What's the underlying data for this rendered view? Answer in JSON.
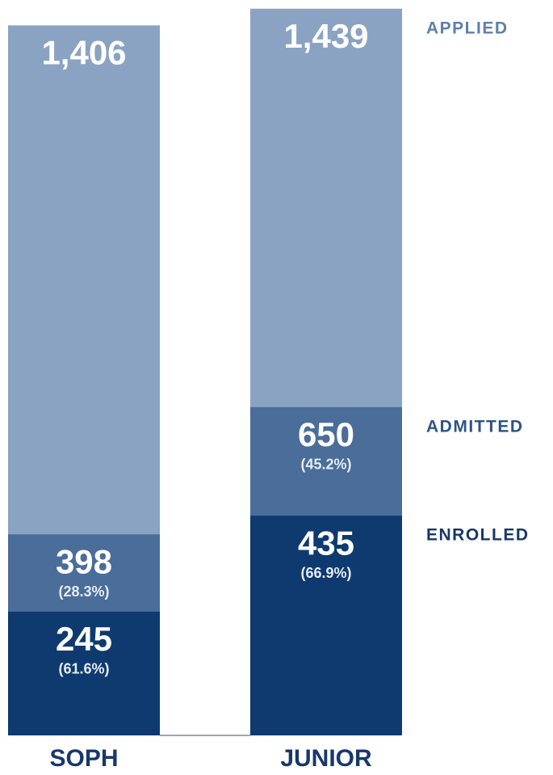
{
  "chart_data": {
    "type": "overlap-bar",
    "categories": [
      "SOPH",
      "JUNIOR"
    ],
    "series": [
      {
        "name": "APPLIED",
        "color": "#8aa3c2",
        "label_color": "#5f7fa8",
        "values": [
          1406,
          1439
        ],
        "value_labels": [
          "1,406",
          "1,439"
        ]
      },
      {
        "name": "ADMITTED",
        "color": "#4a6d99",
        "label_color": "#2e5484",
        "values": [
          398,
          650
        ],
        "share_labels": [
          "(28.3%)",
          "(45.2%)"
        ]
      },
      {
        "name": "ENROLLED",
        "color": "#0e3a6f",
        "label_color": "#17386a",
        "values": [
          245,
          435
        ],
        "share_labels": [
          "(61.6%)",
          "(66.9%)"
        ]
      }
    ],
    "ylim": [
      0,
      1445
    ]
  }
}
